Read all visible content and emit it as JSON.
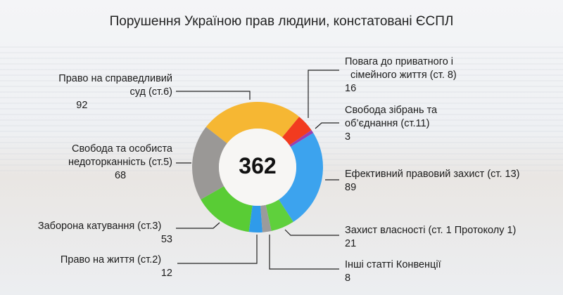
{
  "chart_data": {
    "type": "pie",
    "variant": "donut",
    "title": "Порушення Україною прав людини, констатовані ЄСПЛ",
    "total": "362",
    "slices": [
      {
        "label": "Право на справедливий суд (ст.6)",
        "value": 92,
        "color": "#f6b733"
      },
      {
        "label": "Повага до приватного і сімейного життя (ст. 8)",
        "value": 16,
        "color": "#f23b1f"
      },
      {
        "label": "Свобода зібрань та об’єднання (ст.11)",
        "value": 3,
        "color": "#9a3fb0"
      },
      {
        "label": "Ефективний правовий захист (ст. 13)",
        "value": 89,
        "color": "#3ca3ee"
      },
      {
        "label": "Захист власності (ст. 1 Протоколу 1)",
        "value": 21,
        "color": "#5fd03c"
      },
      {
        "label": "Інші статті Конвенції",
        "value": 8,
        "color": "#9b9b9b"
      },
      {
        "label": "Право на життя (ст.2)",
        "value": 12,
        "color": "#2f9bea"
      },
      {
        "label": "Заборона катування (ст.3)",
        "value": 53,
        "color": "#59cc35"
      },
      {
        "label": "Свобода та особиста недоторканність (ст.5)",
        "value": 68,
        "color": "#9a9896"
      }
    ]
  },
  "labels": {
    "s0": {
      "l1": "Право на справедливий",
      "l2": "суд (ст.6)",
      "v": "92"
    },
    "s1": {
      "l1": "Повага до приватного і",
      "l2": "сімейного життя (ст. 8)",
      "v": "16"
    },
    "s2": {
      "l1": "Свобода зібрань та",
      "l2": "об’єднання (ст.11)",
      "v": "3"
    },
    "s3": {
      "l1": "Ефективний правовий захист (ст. 13)",
      "v": "89"
    },
    "s4": {
      "l1": "Захист власності (ст. 1 Протоколу 1)",
      "v": "21"
    },
    "s5": {
      "l1": "Інші статті Конвенції",
      "v": "8"
    },
    "s6": {
      "l1": "Право на життя (ст.2)",
      "v": "12"
    },
    "s7": {
      "l1": "Заборона катування (ст.3)",
      "v": "53"
    },
    "s8": {
      "l1": "Свобода та особиста",
      "l2": "недоторканність (ст.5)",
      "v": "68"
    }
  }
}
